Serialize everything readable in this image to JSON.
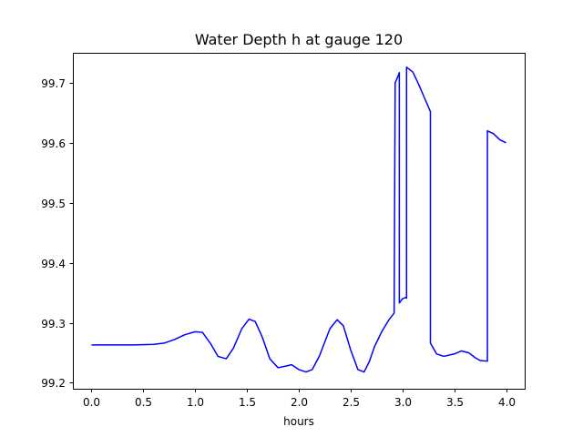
{
  "chart_data": {
    "type": "line",
    "title": "Water Depth h at gauge 120",
    "xlabel": "hours",
    "ylabel": "",
    "xlim": [
      -0.18,
      4.18
    ],
    "ylim": [
      99.19,
      99.75
    ],
    "grid": false,
    "x_ticks": [
      0.0,
      0.5,
      1.0,
      1.5,
      2.0,
      2.5,
      3.0,
      3.5,
      4.0
    ],
    "x_tick_labels": [
      "0.0",
      "0.5",
      "1.0",
      "1.5",
      "2.0",
      "2.5",
      "3.0",
      "3.5",
      "4.0"
    ],
    "y_ticks": [
      99.2,
      99.3,
      99.4,
      99.5,
      99.6,
      99.7
    ],
    "y_tick_labels": [
      "99.2",
      "99.3",
      "99.4",
      "99.5",
      "99.6",
      "99.7"
    ],
    "series": [
      {
        "color": "#0000ff",
        "x": [
          0.0,
          0.4,
          0.6,
          0.7,
          0.8,
          0.9,
          1.0,
          1.07,
          1.15,
          1.22,
          1.3,
          1.37,
          1.45,
          1.52,
          1.58,
          1.65,
          1.72,
          1.8,
          1.88,
          1.93,
          2.0,
          2.07,
          2.13,
          2.2,
          2.3,
          2.37,
          2.43,
          2.5,
          2.57,
          2.63,
          2.68,
          2.73,
          2.8,
          2.87,
          2.92,
          2.93,
          2.96,
          2.97,
          2.97,
          3.0,
          3.03,
          3.04,
          3.04,
          3.1,
          3.15,
          3.2,
          3.27,
          3.27,
          3.33,
          3.4,
          3.5,
          3.57,
          3.64,
          3.7,
          3.75,
          3.82,
          3.82,
          3.88,
          3.94,
          4.0
        ],
        "y": [
          99.263,
          99.263,
          99.264,
          99.266,
          99.272,
          99.28,
          99.285,
          99.284,
          99.265,
          99.244,
          99.24,
          99.258,
          99.29,
          99.306,
          99.302,
          99.275,
          99.24,
          99.225,
          99.228,
          99.23,
          99.222,
          99.218,
          99.222,
          99.245,
          99.29,
          99.305,
          99.295,
          99.255,
          99.222,
          99.218,
          99.235,
          99.26,
          99.285,
          99.305,
          99.316,
          99.7,
          99.712,
          99.717,
          99.333,
          99.34,
          99.342,
          99.341,
          99.726,
          99.718,
          99.7,
          99.68,
          99.652,
          99.266,
          99.248,
          99.244,
          99.248,
          99.253,
          99.25,
          99.242,
          99.237,
          99.236,
          99.62,
          99.615,
          99.605,
          99.6
        ]
      }
    ]
  }
}
